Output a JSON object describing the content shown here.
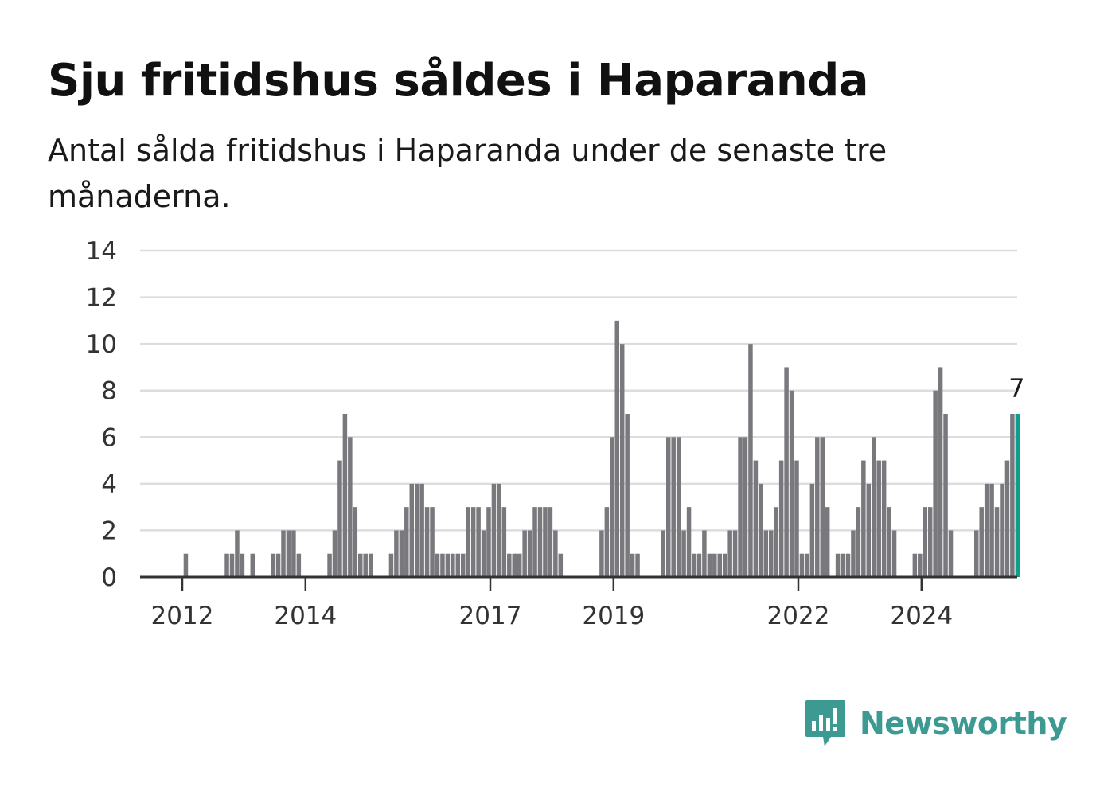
{
  "title": "Sju fritidshus såldes i Haparanda",
  "subtitle": "Antal sålda fritidshus i Haparanda under de senaste tre månaderna.",
  "brand": {
    "name": "Newsworthy",
    "color": "#3c9a93",
    "icon": "newsworthy-logo-icon"
  },
  "chart_data": {
    "type": "bar",
    "title": "Sju fritidshus såldes i Haparanda",
    "subtitle": "Antal sålda fritidshus i Haparanda under de senaste tre månaderna.",
    "xlabel": "",
    "ylabel": "",
    "ylim": [
      0,
      14
    ],
    "yticks": [
      0,
      2,
      4,
      6,
      8,
      10,
      12,
      14
    ],
    "xticks": [
      "2012",
      "2014",
      "2017",
      "2019",
      "2022",
      "2024"
    ],
    "grid": true,
    "bar_color": "#79787d",
    "highlight_color": "#0e9e8e",
    "highlight_label": "7",
    "series": [
      {
        "values": [
          0,
          1,
          0,
          0,
          0,
          0,
          0,
          0,
          0,
          1,
          1,
          2,
          1,
          0,
          1,
          0,
          0,
          0,
          1,
          1,
          2,
          2,
          2,
          1,
          0,
          0,
          0,
          0,
          0,
          1,
          2,
          5,
          7,
          6,
          3,
          1,
          1,
          1,
          0,
          0,
          0,
          1,
          2,
          2,
          3,
          4,
          4,
          4,
          3,
          3,
          1,
          1,
          1,
          1,
          1,
          1,
          3,
          3,
          3,
          2,
          3,
          4,
          4,
          3,
          1,
          1,
          1,
          2,
          2,
          3,
          3,
          3,
          3,
          2,
          1,
          0,
          0,
          0,
          0,
          0,
          0,
          0,
          2,
          3,
          6,
          11,
          10,
          7,
          1,
          1,
          0,
          0,
          0,
          0,
          2,
          6,
          6,
          6,
          2,
          3,
          1,
          1,
          2,
          1,
          1,
          1,
          1,
          2,
          2,
          6,
          6,
          10,
          5,
          4,
          2,
          2,
          3,
          5,
          9,
          8,
          5,
          1,
          1,
          4,
          6,
          6,
          3,
          0,
          1,
          1,
          1,
          2,
          3,
          5,
          4,
          6,
          5,
          5,
          3,
          2,
          0,
          0,
          0,
          1,
          1,
          3,
          3,
          8,
          9,
          7,
          2,
          0,
          0,
          0,
          0,
          2,
          3,
          4,
          4,
          3,
          4,
          5,
          7,
          7
        ]
      }
    ]
  }
}
